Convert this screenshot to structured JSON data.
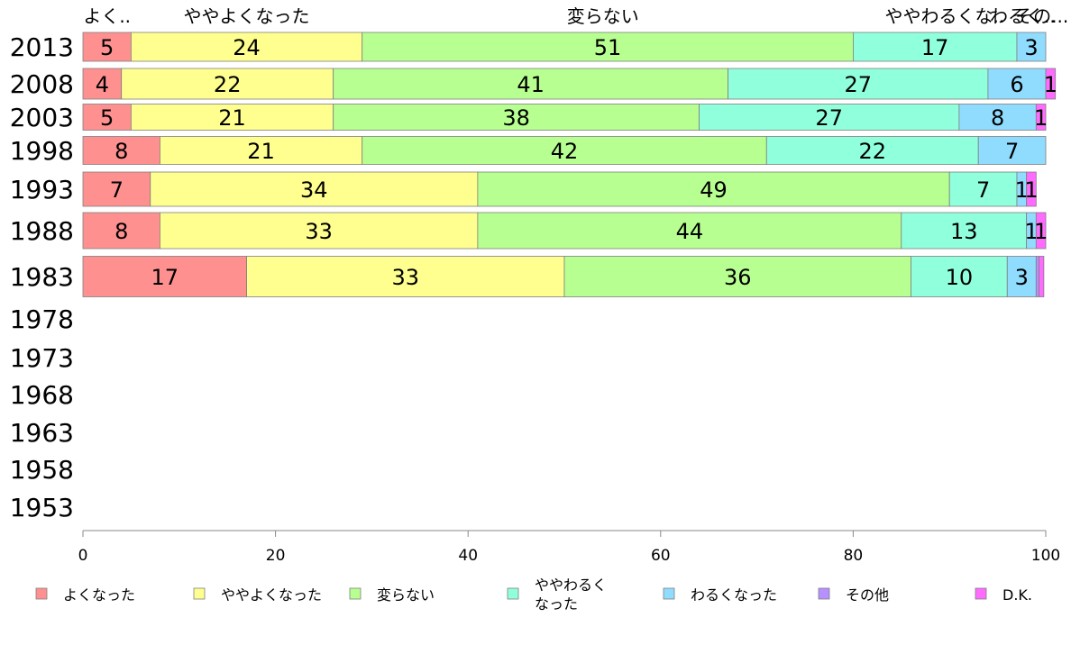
{
  "chart_data": {
    "type": "bar",
    "orientation": "horizontal",
    "stacked": true,
    "categories": [
      "2013",
      "2008",
      "2003",
      "1998",
      "1993",
      "1988",
      "1983",
      "1978",
      "1973",
      "1968",
      "1963",
      "1958",
      "1953"
    ],
    "top_labels": [
      "よく..",
      "ややよくなった",
      "変らない",
      "ややわるくな..",
      "わるく..",
      "その..."
    ],
    "series": [
      {
        "name": "よくなった",
        "color": "#ff9090",
        "values": [
          5,
          4,
          5,
          8,
          7,
          8,
          17,
          null,
          null,
          null,
          null,
          null,
          null
        ]
      },
      {
        "name": "ややよくなった",
        "color": "#ffff90",
        "values": [
          24,
          22,
          21,
          21,
          34,
          33,
          33,
          null,
          null,
          null,
          null,
          null,
          null
        ]
      },
      {
        "name": "変らない",
        "color": "#b7ff90",
        "values": [
          51,
          41,
          38,
          42,
          49,
          44,
          36,
          null,
          null,
          null,
          null,
          null,
          null
        ]
      },
      {
        "name": "ややわるく\nなった",
        "color": "#90ffdc",
        "values": [
          17,
          27,
          27,
          22,
          7,
          13,
          10,
          null,
          null,
          null,
          null,
          null,
          null
        ]
      },
      {
        "name": "わるくなった",
        "color": "#90dcff",
        "values": [
          3,
          6,
          8,
          7,
          1,
          1,
          3,
          null,
          null,
          null,
          null,
          null,
          null
        ]
      },
      {
        "name": "その他",
        "color": "#b790ff",
        "values": [
          0,
          0,
          0,
          0,
          0,
          0,
          0.3,
          null,
          null,
          null,
          null,
          null,
          null
        ]
      },
      {
        "name": "D.K.",
        "color": "#ff6bff",
        "values": [
          0,
          1,
          1,
          0,
          1,
          1,
          0.5,
          null,
          null,
          null,
          null,
          null,
          null
        ]
      }
    ],
    "xlim": [
      0,
      100
    ],
    "xticks": [
      0,
      20,
      40,
      60,
      80,
      100
    ],
    "legend_position": "bottom",
    "grid": false
  }
}
